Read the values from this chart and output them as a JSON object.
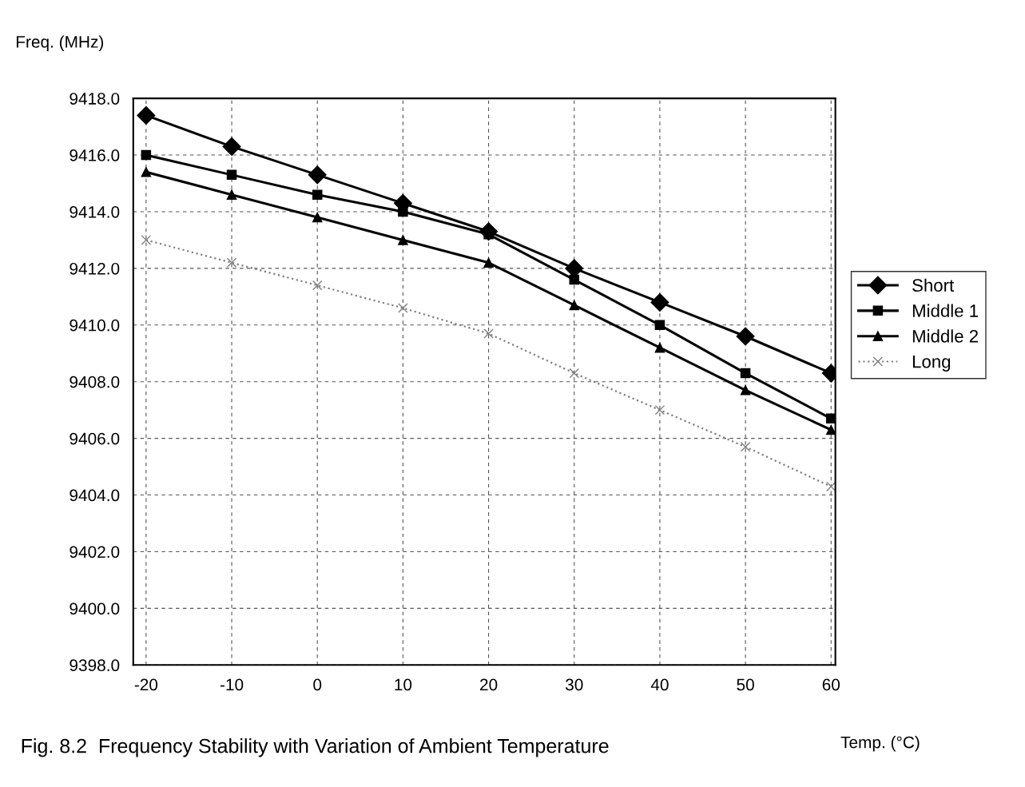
{
  "chart_data": {
    "type": "line",
    "title": "Fig. 8.2  Frequency Stability with Variation of Ambient Temperature",
    "xlabel": "Temp. (°C)",
    "ylabel": "Freq. (MHz)",
    "categories": [
      "-20",
      "-10",
      "0",
      "10",
      "20",
      "30",
      "40",
      "50",
      "60"
    ],
    "series": [
      {
        "name": "Short",
        "color": "#000000",
        "marker": "diamond",
        "line_style": "solid",
        "values": [
          9417.4,
          9416.3,
          9415.3,
          9414.3,
          9413.3,
          9412.0,
          9410.8,
          9409.6,
          9408.3
        ]
      },
      {
        "name": "Middle 1",
        "color": "#000000",
        "marker": "square",
        "line_style": "solid",
        "values": [
          9416.0,
          9415.3,
          9414.6,
          9414.0,
          9413.2,
          9411.6,
          9410.0,
          9408.3,
          9406.7
        ]
      },
      {
        "name": "Middle 2",
        "color": "#000000",
        "marker": "triangle",
        "line_style": "solid",
        "values": [
          9415.4,
          9414.6,
          9413.8,
          9413.0,
          9412.2,
          9410.7,
          9409.2,
          9407.7,
          9406.3
        ]
      },
      {
        "name": "Long",
        "color": "#808080",
        "marker": "cross",
        "line_style": "dotted",
        "values": [
          9413.0,
          9412.2,
          9411.4,
          9410.6,
          9409.7,
          9408.3,
          9407.0,
          9405.7,
          9404.3
        ]
      }
    ],
    "ylim": [
      9398,
      9418
    ],
    "yticks": [
      {
        "value": 9398,
        "label": "9398.0"
      },
      {
        "value": 9400,
        "label": "9400.0"
      },
      {
        "value": 9402,
        "label": "9402.0"
      },
      {
        "value": 9404,
        "label": "9404.0"
      },
      {
        "value": 9406,
        "label": "9406.0"
      },
      {
        "value": 9408,
        "label": "9408.0"
      },
      {
        "value": 9410,
        "label": "9410.0"
      },
      {
        "value": 9412,
        "label": "9412.0"
      },
      {
        "value": 9414,
        "label": "9414.0"
      },
      {
        "value": 9416,
        "label": "9416.0"
      },
      {
        "value": 9418,
        "label": "9418.0"
      }
    ],
    "grid": true,
    "legend": "right"
  }
}
